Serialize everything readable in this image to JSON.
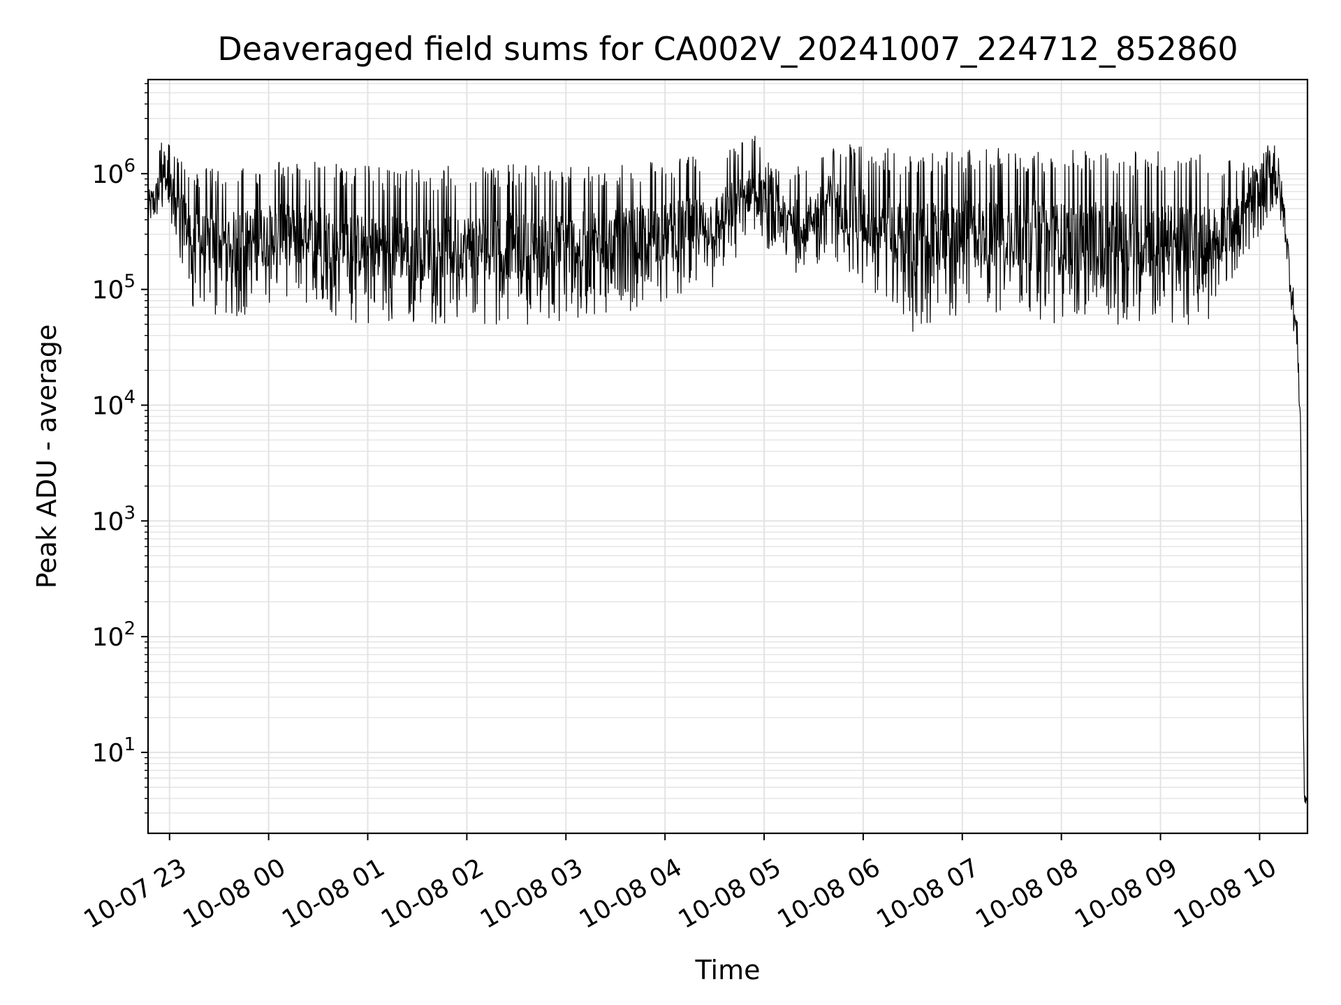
{
  "chart_data": {
    "type": "line",
    "title": "Deaveraged field sums for CA002V_20241007_224712_852860",
    "xlabel": "Time",
    "ylabel": "Peak ADU - average",
    "yscale": "log",
    "ylim": [
      2,
      6500000
    ],
    "xlim": [
      "2024-10-07 22:47",
      "2024-10-08 10:29"
    ],
    "x_ticks": [
      {
        "t": "2024-10-07 23:00",
        "label": "10-07 23"
      },
      {
        "t": "2024-10-08 00:00",
        "label": "10-08 00"
      },
      {
        "t": "2024-10-08 01:00",
        "label": "10-08 01"
      },
      {
        "t": "2024-10-08 02:00",
        "label": "10-08 02"
      },
      {
        "t": "2024-10-08 03:00",
        "label": "10-08 03"
      },
      {
        "t": "2024-10-08 04:00",
        "label": "10-08 04"
      },
      {
        "t": "2024-10-08 05:00",
        "label": "10-08 05"
      },
      {
        "t": "2024-10-08 06:00",
        "label": "10-08 06"
      },
      {
        "t": "2024-10-08 07:00",
        "label": "10-08 07"
      },
      {
        "t": "2024-10-08 08:00",
        "label": "10-08 08"
      },
      {
        "t": "2024-10-08 09:00",
        "label": "10-08 09"
      },
      {
        "t": "2024-10-08 10:00",
        "label": "10-08 10"
      }
    ],
    "y_ticks": [
      {
        "value": 10,
        "base": "10",
        "exp": "1"
      },
      {
        "value": 100,
        "base": "10",
        "exp": "2"
      },
      {
        "value": 1000,
        "base": "10",
        "exp": "3"
      },
      {
        "value": 10000,
        "base": "10",
        "exp": "4"
      },
      {
        "value": 100000,
        "base": "10",
        "exp": "5"
      },
      {
        "value": 1000000,
        "base": "10",
        "exp": "6"
      }
    ],
    "grid": true,
    "line_color": "#000000",
    "grid_color": "#e3e3e3",
    "series": [
      {
        "envelope": [
          {
            "t": "2024-10-07 22:47",
            "lo": 350000,
            "hi": 700000
          },
          {
            "t": "2024-10-07 22:52",
            "lo": 400000,
            "hi": 900000
          },
          {
            "t": "2024-10-07 22:56",
            "lo": 450000,
            "hi": 3400000
          },
          {
            "t": "2024-10-07 23:03",
            "lo": 250000,
            "hi": 1500000
          },
          {
            "t": "2024-10-07 23:15",
            "lo": 60000,
            "hi": 1100000
          },
          {
            "t": "2024-10-07 23:40",
            "lo": 55000,
            "hi": 1200000
          },
          {
            "t": "2024-10-08 00:00",
            "lo": 70000,
            "hi": 1300000
          },
          {
            "t": "2024-10-08 00:30",
            "lo": 70000,
            "hi": 1350000
          },
          {
            "t": "2024-10-08 00:50",
            "lo": 50000,
            "hi": 1200000
          },
          {
            "t": "2024-10-08 01:30",
            "lo": 50000,
            "hi": 1100000
          },
          {
            "t": "2024-10-08 02:00",
            "lo": 50000,
            "hi": 1200000
          },
          {
            "t": "2024-10-08 02:30",
            "lo": 50000,
            "hi": 1200000
          },
          {
            "t": "2024-10-08 03:00",
            "lo": 50000,
            "hi": 1200000
          },
          {
            "t": "2024-10-08 03:30",
            "lo": 60000,
            "hi": 1200000
          },
          {
            "t": "2024-10-08 04:00",
            "lo": 80000,
            "hi": 1300000
          },
          {
            "t": "2024-10-08 04:30",
            "lo": 100000,
            "hi": 1500000
          },
          {
            "t": "2024-10-08 04:55",
            "lo": 300000,
            "hi": 2200000
          },
          {
            "t": "2024-10-08 05:05",
            "lo": 200000,
            "hi": 1100000
          },
          {
            "t": "2024-10-08 05:25",
            "lo": 120000,
            "hi": 1200000
          },
          {
            "t": "2024-10-08 05:40",
            "lo": 200000,
            "hi": 2000000
          },
          {
            "t": "2024-10-08 06:00",
            "lo": 100000,
            "hi": 1800000
          },
          {
            "t": "2024-10-08 06:30",
            "lo": 40000,
            "hi": 1600000
          },
          {
            "t": "2024-10-08 07:00",
            "lo": 60000,
            "hi": 1600000
          },
          {
            "t": "2024-10-08 07:30",
            "lo": 60000,
            "hi": 1700000
          },
          {
            "t": "2024-10-08 08:00",
            "lo": 50000,
            "hi": 1600000
          },
          {
            "t": "2024-10-08 08:30",
            "lo": 50000,
            "hi": 1600000
          },
          {
            "t": "2024-10-08 09:00",
            "lo": 45000,
            "hi": 1600000
          },
          {
            "t": "2024-10-08 09:30",
            "lo": 50000,
            "hi": 1500000
          },
          {
            "t": "2024-10-08 10:00",
            "lo": 300000,
            "hi": 1200000
          },
          {
            "t": "2024-10-08 10:09",
            "lo": 500000,
            "hi": 2600000
          },
          {
            "t": "2024-10-08 10:15",
            "lo": 300000,
            "hi": 600000
          },
          {
            "t": "2024-10-08 10:20",
            "lo": 50000,
            "hi": 120000
          },
          {
            "t": "2024-10-08 10:23",
            "lo": 25000,
            "hi": 50000
          },
          {
            "t": "2024-10-08 10:25",
            "lo": 3000,
            "hi": 8000
          },
          {
            "t": "2024-10-08 10:26",
            "lo": 50,
            "hi": 200
          },
          {
            "t": "2024-10-08 10:27",
            "lo": 3.5,
            "hi": 5
          },
          {
            "t": "2024-10-08 10:29",
            "lo": 3.5,
            "hi": 4.5
          }
        ]
      }
    ]
  }
}
